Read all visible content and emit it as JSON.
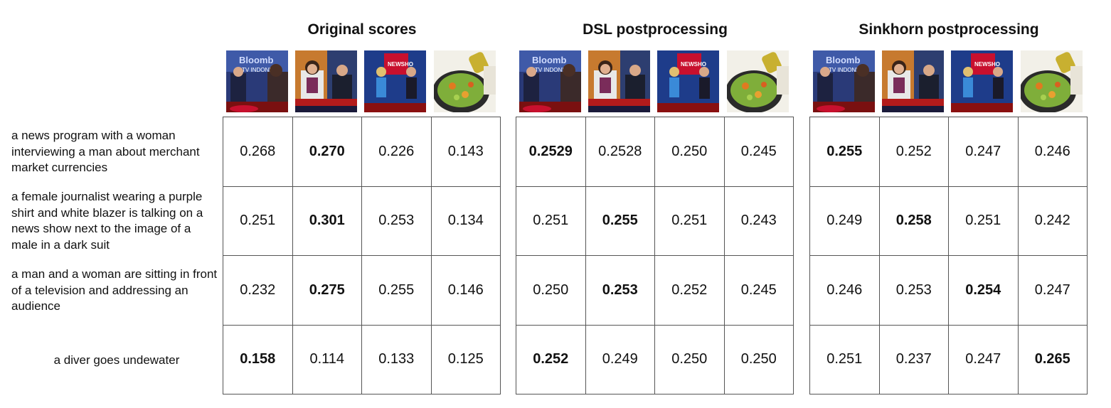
{
  "captions": [
    "a news program with a woman interviewing a man about merchant market currencies",
    "a female journalist wearing a purple shirt and white blazer is talking on a news show next to the image of a male in a dark suit",
    "a man and a woman are sitting in front of a television and addressing an audience",
    "a diver goes undewater"
  ],
  "image_icons": [
    "bloomberg-news-thumbnail",
    "news-anchors-thumbnail",
    "news-show-thumbnail",
    "stir-fry-thumbnail"
  ],
  "colors": {
    "grid_line": "#555555",
    "text": "#111111"
  },
  "panels": [
    {
      "title": "Original scores",
      "rows": [
        [
          "0.268",
          "0.270",
          "0.226",
          "0.143"
        ],
        [
          "0.251",
          "0.301",
          "0.253",
          "0.134"
        ],
        [
          "0.232",
          "0.275",
          "0.255",
          "0.146"
        ],
        [
          "0.158",
          "0.114",
          "0.133",
          "0.125"
        ]
      ],
      "bold_columns": [
        1,
        1,
        1,
        0
      ]
    },
    {
      "title": "DSL postprocessing",
      "rows": [
        [
          "0.2529",
          "0.2528",
          "0.250",
          "0.245"
        ],
        [
          "0.251",
          "0.255",
          "0.251",
          "0.243"
        ],
        [
          "0.250",
          "0.253",
          "0.252",
          "0.245"
        ],
        [
          "0.252",
          "0.249",
          "0.250",
          "0.250"
        ]
      ],
      "bold_columns": [
        0,
        1,
        1,
        0
      ]
    },
    {
      "title": "Sinkhorn postprocessing",
      "rows": [
        [
          "0.255",
          "0.252",
          "0.247",
          "0.246"
        ],
        [
          "0.249",
          "0.258",
          "0.251",
          "0.242"
        ],
        [
          "0.246",
          "0.253",
          "0.254",
          "0.247"
        ],
        [
          "0.251",
          "0.237",
          "0.247",
          "0.265"
        ]
      ],
      "bold_columns": [
        0,
        1,
        2,
        3
      ]
    }
  ]
}
